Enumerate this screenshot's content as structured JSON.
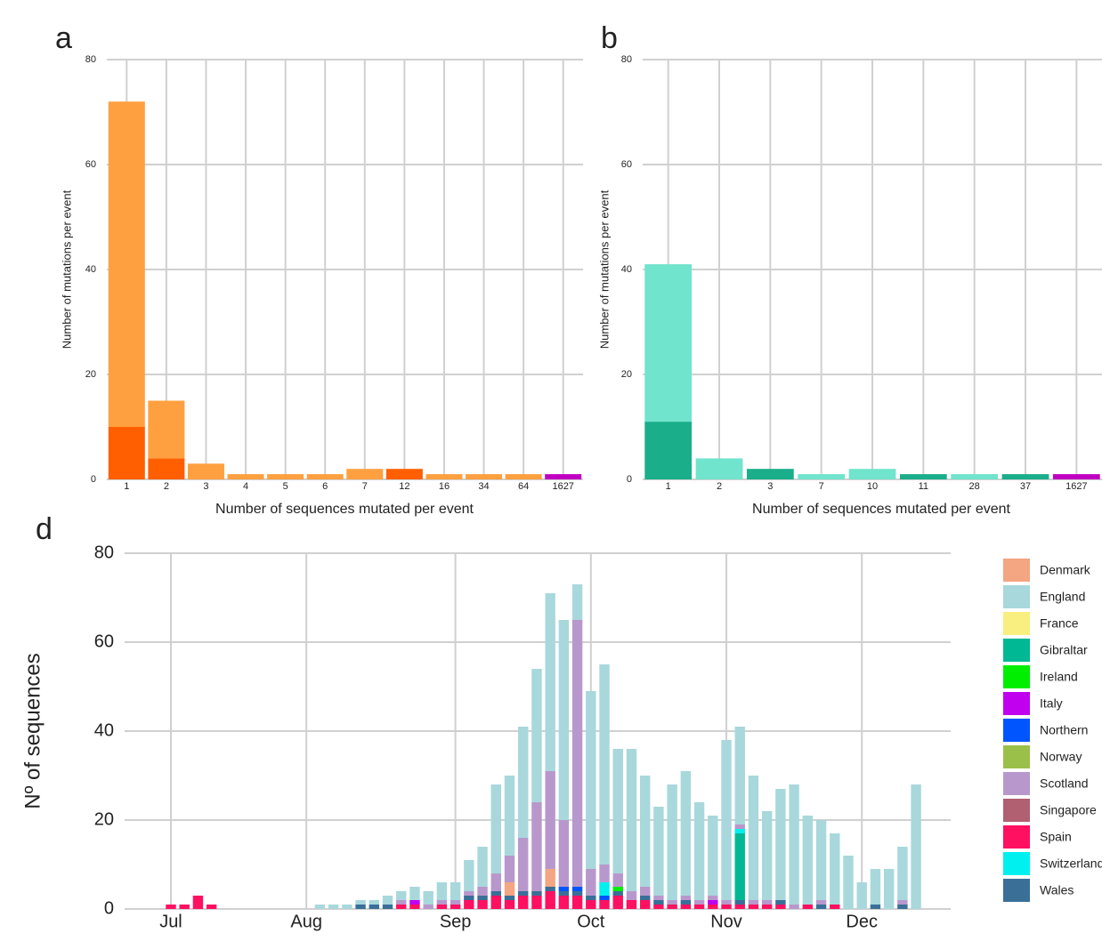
{
  "chart_data": [
    {
      "type": "bar",
      "panel": "a",
      "ylabel": "Number of mutations per event",
      "xlabel": "Number of sequences mutated per event",
      "categories": [
        "1",
        "2",
        "3",
        "4",
        "5",
        "6",
        "7",
        "12",
        "16",
        "34",
        "64",
        "1627"
      ],
      "ylim": [
        0,
        80
      ],
      "yticks": [
        0,
        20,
        40,
        60,
        80
      ],
      "grid": true,
      "stacked": true,
      "series": [
        {
          "color": "#ff5f00",
          "values": [
            10,
            4,
            0,
            0,
            0,
            0,
            0,
            2,
            0,
            0,
            0,
            0
          ]
        },
        {
          "color": "#ffa040",
          "colors": [
            "#ffa040",
            "#ffa040",
            "#ffa040",
            "#ffa040",
            "#ffa040",
            "#ffa040",
            "#ffa040",
            "#ffa040",
            "#ffa040",
            "#ffa040",
            "#ffa040",
            "#c000c0"
          ],
          "values": [
            62,
            11,
            3,
            1,
            1,
            1,
            2,
            0,
            1,
            1,
            1,
            1
          ]
        }
      ]
    },
    {
      "type": "bar",
      "panel": "b",
      "ylabel": "Number of mutations per event",
      "xlabel": "Number of sequences mutated per event",
      "categories": [
        "1",
        "2",
        "3",
        "7",
        "10",
        "11",
        "28",
        "37",
        "1627"
      ],
      "ylim": [
        0,
        80
      ],
      "yticks": [
        0,
        20,
        40,
        60,
        80
      ],
      "grid": true,
      "stacked": true,
      "series": [
        {
          "color": "#1aae8a",
          "values": [
            11,
            0,
            2,
            0,
            0,
            1,
            0,
            1,
            0
          ]
        },
        {
          "color": "#70e4cc",
          "colors": [
            "#70e4cc",
            "#70e4cc",
            "#70e4cc",
            "#70e4cc",
            "#70e4cc",
            "#70e4cc",
            "#70e4cc",
            "#70e4cc",
            "#c000c0"
          ],
          "values": [
            30,
            4,
            0,
            1,
            2,
            0,
            1,
            0,
            1
          ]
        }
      ]
    },
    {
      "type": "bar",
      "panel": "d",
      "ylabel": "Nº of sequences",
      "categories": [
        null,
        null,
        null,
        null,
        "Jul",
        null,
        null,
        null,
        null,
        null,
        null,
        null,
        null,
        null,
        "Aug",
        null,
        null,
        null,
        null,
        null,
        null,
        null,
        null,
        null,
        null,
        "Sep",
        null,
        null,
        null,
        null,
        null,
        null,
        null,
        null,
        null,
        "Oct",
        null,
        null,
        null,
        null,
        null,
        null,
        null,
        null,
        null,
        "Nov",
        null,
        null,
        null,
        null,
        null,
        null,
        null,
        null,
        null,
        "Dec",
        null,
        null,
        null,
        null
      ],
      "ylim": [
        0,
        80
      ],
      "yticks": [
        0,
        20,
        40,
        60,
        80
      ],
      "grid": true,
      "stacked": true,
      "legend": "right",
      "series": [
        {
          "name": "Spain",
          "color": "#ff1060",
          "values": [
            0,
            0,
            0,
            0,
            1,
            1,
            3,
            1,
            0,
            0,
            0,
            0,
            0,
            0,
            0,
            0,
            0,
            0,
            0,
            0,
            0,
            1,
            1,
            0,
            1,
            1,
            2,
            2,
            3,
            2,
            3,
            3,
            4,
            3,
            3,
            2,
            2,
            3,
            2,
            2,
            1,
            1,
            1,
            1,
            1,
            1,
            1,
            1,
            1,
            1,
            0,
            1,
            0,
            1,
            0,
            0,
            0,
            0,
            0,
            0
          ]
        },
        {
          "name": "Wales",
          "color": "#3a6f98",
          "values": [
            0,
            0,
            0,
            0,
            0,
            0,
            0,
            0,
            0,
            0,
            0,
            0,
            0,
            0,
            0,
            0,
            0,
            0,
            1,
            1,
            1,
            0,
            0,
            0,
            0,
            0,
            1,
            1,
            1,
            1,
            1,
            1,
            1,
            1,
            1,
            1,
            0,
            1,
            0,
            1,
            1,
            0,
            1,
            0,
            0,
            0,
            1,
            0,
            0,
            1,
            0,
            0,
            1,
            0,
            0,
            0,
            1,
            0,
            1,
            0
          ]
        },
        {
          "name": "Denmark",
          "color": "#f4a582",
          "values": [
            0,
            0,
            0,
            0,
            0,
            0,
            0,
            0,
            0,
            0,
            0,
            0,
            0,
            0,
            0,
            0,
            0,
            0,
            0,
            0,
            0,
            0,
            0,
            0,
            0,
            0,
            0,
            0,
            0,
            3,
            0,
            0,
            4,
            0,
            0,
            0,
            0,
            0,
            0,
            0,
            0,
            0,
            0,
            0,
            0,
            0,
            0,
            0,
            0,
            0,
            0,
            0,
            0,
            0,
            0,
            0,
            0,
            0,
            0,
            0
          ]
        },
        {
          "name": "France",
          "color": "#f8ef80",
          "values": [
            0,
            0,
            0,
            0,
            0,
            0,
            0,
            0,
            0,
            0,
            0,
            0,
            0,
            0,
            0,
            0,
            0,
            0,
            0,
            0,
            0,
            0,
            0,
            0,
            0,
            0,
            0,
            0,
            0,
            0,
            0,
            0,
            0,
            0,
            0,
            0,
            0,
            0,
            0,
            0,
            0,
            0,
            0,
            0,
            0,
            0,
            0,
            0,
            0,
            0,
            0,
            0,
            0,
            0,
            0,
            0,
            0,
            0,
            0,
            0
          ]
        },
        {
          "name": "Gibraltar",
          "color": "#00b894",
          "values": [
            0,
            0,
            0,
            0,
            0,
            0,
            0,
            0,
            0,
            0,
            0,
            0,
            0,
            0,
            0,
            0,
            0,
            0,
            0,
            0,
            0,
            0,
            0,
            0,
            0,
            0,
            0,
            0,
            0,
            0,
            0,
            0,
            0,
            0,
            0,
            0,
            0,
            0,
            0,
            0,
            0,
            0,
            0,
            0,
            0,
            0,
            15,
            0,
            0,
            0,
            0,
            0,
            0,
            0,
            0,
            0,
            0,
            0,
            0,
            0
          ]
        },
        {
          "name": "Ireland",
          "color": "#00ee00",
          "values": [
            0,
            0,
            0,
            0,
            0,
            0,
            0,
            0,
            0,
            0,
            0,
            0,
            0,
            0,
            0,
            0,
            0,
            0,
            0,
            0,
            0,
            0,
            0,
            0,
            0,
            0,
            0,
            0,
            0,
            0,
            0,
            0,
            0,
            0,
            0,
            0,
            0,
            1,
            0,
            0,
            0,
            0,
            0,
            0,
            0,
            0,
            0,
            0,
            0,
            0,
            0,
            0,
            0,
            0,
            0,
            0,
            0,
            0,
            0,
            0
          ]
        },
        {
          "name": "Italy",
          "color": "#c000ee",
          "values": [
            0,
            0,
            0,
            0,
            0,
            0,
            0,
            0,
            0,
            0,
            0,
            0,
            0,
            0,
            0,
            0,
            0,
            0,
            0,
            0,
            0,
            0,
            1,
            0,
            0,
            0,
            0,
            0,
            0,
            0,
            0,
            0,
            0,
            0,
            0,
            0,
            0,
            0,
            0,
            0,
            0,
            0,
            0,
            0,
            1,
            0,
            0,
            0,
            0,
            0,
            0,
            0,
            0,
            0,
            0,
            0,
            0,
            0,
            0,
            0
          ]
        },
        {
          "name": "Northern",
          "color": "#0055ff",
          "values": [
            0,
            0,
            0,
            0,
            0,
            0,
            0,
            0,
            0,
            0,
            0,
            0,
            0,
            0,
            0,
            0,
            0,
            0,
            0,
            0,
            0,
            0,
            0,
            0,
            0,
            0,
            0,
            0,
            0,
            0,
            0,
            0,
            0,
            1,
            1,
            0,
            1,
            0,
            0,
            0,
            0,
            0,
            0,
            0,
            0,
            0,
            0,
            0,
            0,
            0,
            0,
            0,
            0,
            0,
            0,
            0,
            0,
            0,
            0,
            0
          ]
        },
        {
          "name": "Norway",
          "color": "#9bc04a",
          "values": [
            0,
            0,
            0,
            0,
            0,
            0,
            0,
            0,
            0,
            0,
            0,
            0,
            0,
            0,
            0,
            0,
            0,
            0,
            0,
            0,
            0,
            0,
            0,
            0,
            0,
            0,
            0,
            0,
            0,
            0,
            0,
            0,
            0,
            0,
            0,
            0,
            0,
            0,
            0,
            0,
            0,
            0,
            0,
            0,
            0,
            0,
            0,
            0,
            0,
            0,
            0,
            0,
            0,
            0,
            0,
            0,
            0,
            0,
            0,
            0
          ]
        },
        {
          "name": "Singapore",
          "color": "#b06070",
          "values": [
            0,
            0,
            0,
            0,
            0,
            0,
            0,
            0,
            0,
            0,
            0,
            0,
            0,
            0,
            0,
            0,
            0,
            0,
            0,
            0,
            0,
            0,
            0,
            0,
            0,
            0,
            0,
            0,
            0,
            0,
            0,
            0,
            0,
            0,
            0,
            0,
            0,
            0,
            0,
            0,
            0,
            0,
            0,
            0,
            0,
            0,
            0,
            0,
            0,
            0,
            0,
            0,
            0,
            0,
            0,
            0,
            0,
            0,
            0,
            0
          ]
        },
        {
          "name": "Switzerland",
          "color": "#00f0f0",
          "values": [
            0,
            0,
            0,
            0,
            0,
            0,
            0,
            0,
            0,
            0,
            0,
            0,
            0,
            0,
            0,
            0,
            0,
            0,
            0,
            0,
            0,
            0,
            0,
            0,
            0,
            0,
            0,
            0,
            0,
            0,
            0,
            0,
            0,
            0,
            0,
            0,
            3,
            0,
            0,
            0,
            0,
            0,
            0,
            0,
            0,
            0,
            1,
            0,
            0,
            0,
            0,
            0,
            0,
            0,
            0,
            0,
            0,
            0,
            0,
            0
          ]
        },
        {
          "name": "Scotland",
          "color": "#b898cc",
          "values": [
            0,
            0,
            0,
            0,
            0,
            0,
            0,
            0,
            0,
            0,
            0,
            0,
            0,
            0,
            0,
            0,
            0,
            0,
            0,
            0,
            0,
            1,
            0,
            1,
            1,
            1,
            1,
            2,
            4,
            6,
            12,
            20,
            22,
            15,
            60,
            6,
            4,
            3,
            2,
            2,
            1,
            1,
            1,
            1,
            1,
            1,
            1,
            1,
            1,
            0,
            1,
            0,
            1,
            0,
            0,
            0,
            0,
            0,
            1,
            0
          ]
        },
        {
          "name": "England",
          "color": "#a8d8dc",
          "values": [
            0,
            0,
            0,
            0,
            0,
            0,
            0,
            0,
            0,
            0,
            0,
            0,
            0,
            0,
            0,
            1,
            1,
            1,
            1,
            1,
            2,
            2,
            3,
            3,
            4,
            4,
            7,
            9,
            20,
            18,
            25,
            30,
            40,
            45,
            8,
            40,
            45,
            28,
            32,
            25,
            20,
            26,
            28,
            22,
            18,
            36,
            22,
            28,
            20,
            25,
            27,
            20,
            18,
            16,
            12,
            6,
            8,
            9,
            12,
            28
          ]
        }
      ]
    }
  ]
}
